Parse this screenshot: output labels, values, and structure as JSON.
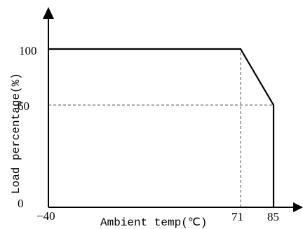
{
  "chart_data": {
    "type": "line",
    "xlabel": "Ambient temp(℃)",
    "ylabel": "Load percentage(%)",
    "x_tick_labels": [
      "−40",
      "71",
      "85"
    ],
    "y_tick_labels": [
      "0",
      "60",
      "100"
    ],
    "xlim": [
      -40,
      85
    ],
    "ylim": [
      0,
      100
    ],
    "grid": false,
    "series": [
      {
        "x": [
          -40,
          71,
          85,
          85
        ],
        "y": [
          100,
          100,
          60,
          0
        ]
      }
    ],
    "reference_lines": [
      {
        "type": "vertical",
        "x": 71,
        "y_from": 0,
        "y_to": 100,
        "style": "dashed"
      },
      {
        "type": "horizontal",
        "y": 60,
        "x_from": -40,
        "x_to": 85,
        "style": "dashed"
      }
    ],
    "colors": {
      "line": "#000000",
      "dash": "#555555",
      "axis": "#000000"
    }
  }
}
